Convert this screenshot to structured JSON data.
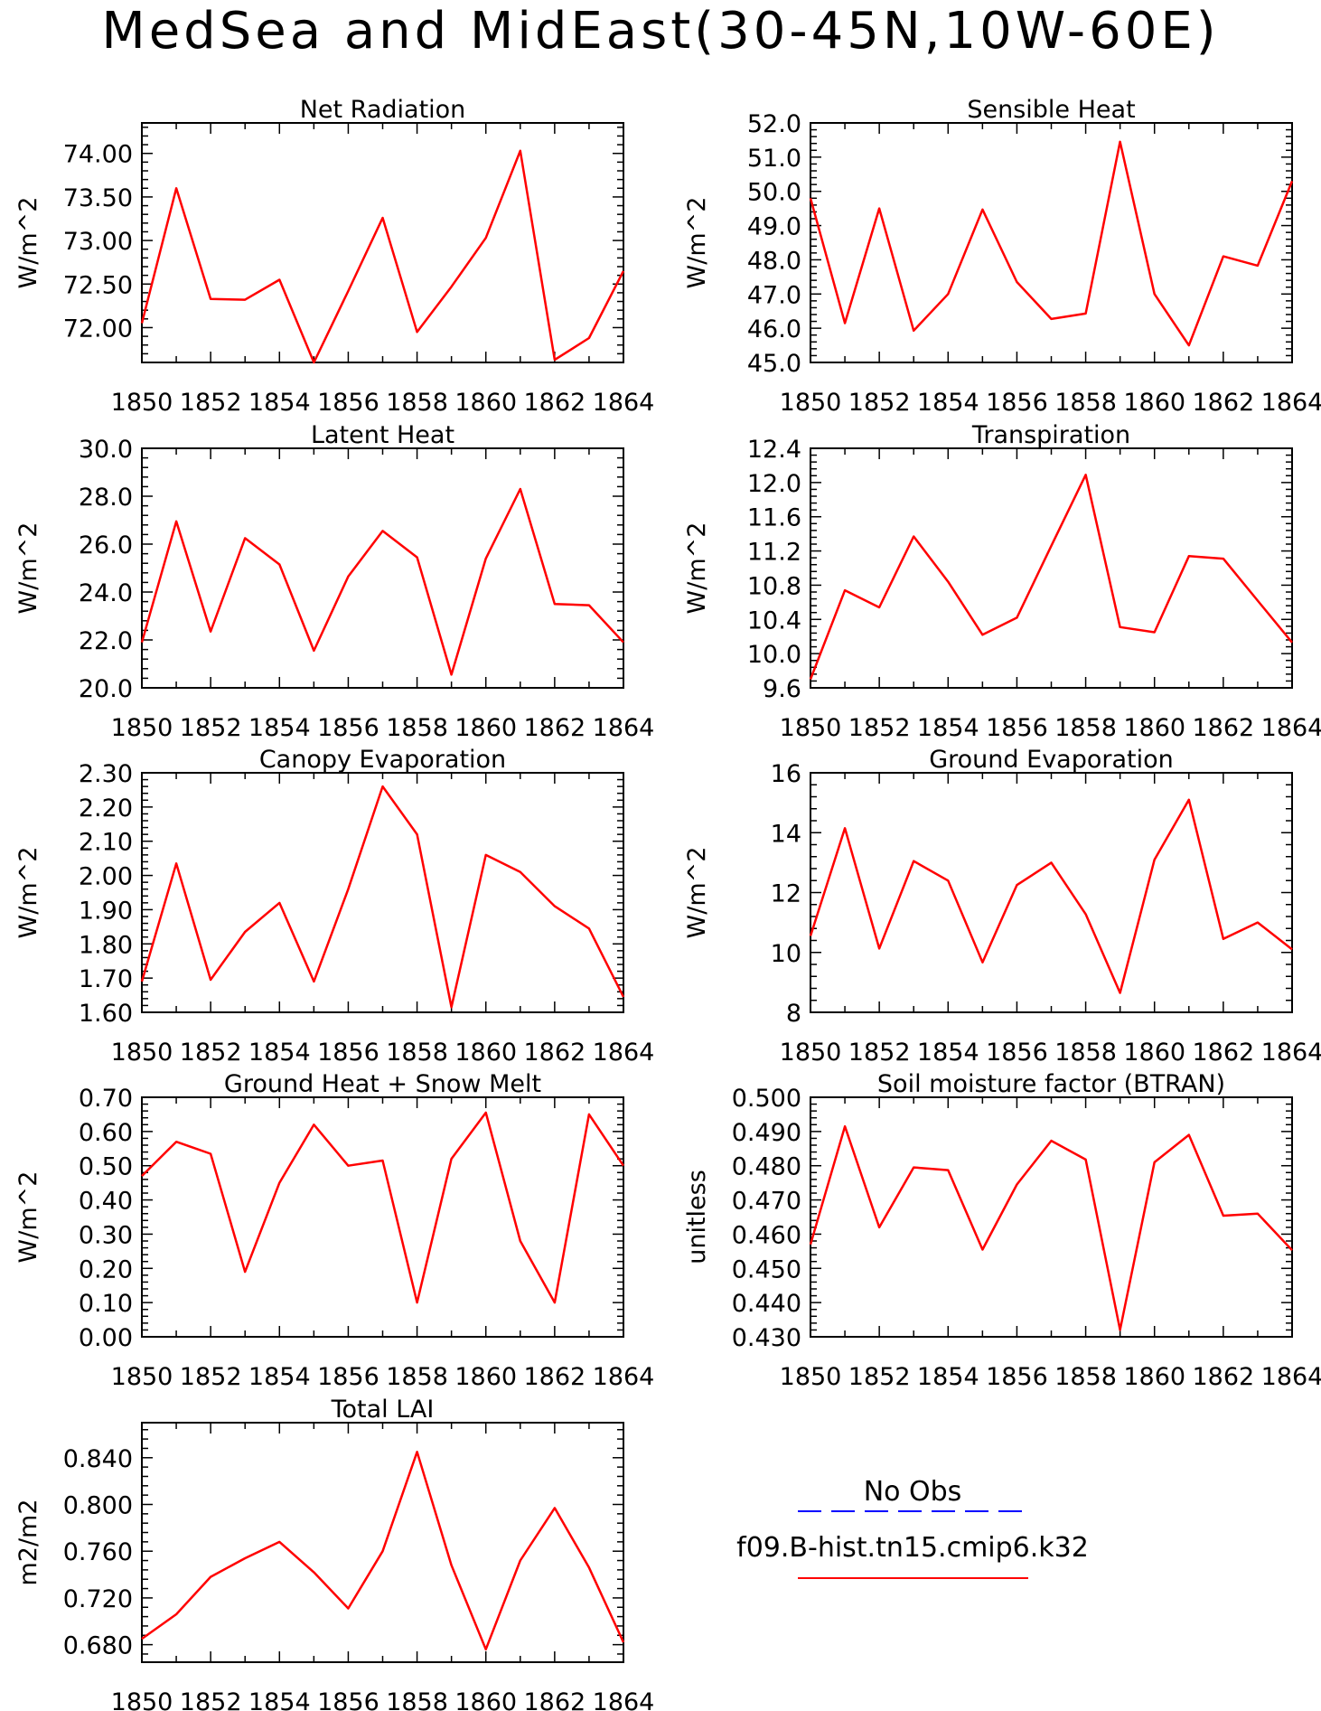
{
  "title": "MedSea and MidEast(30-45N,10W-60E)",
  "colors": {
    "model_line": "#ff0000",
    "obs_line": "#0000ff",
    "axis": "#000000"
  },
  "legend": {
    "obs_label": "No Obs",
    "model_label": "f09.B-hist.tn15.cmip6.k32"
  },
  "chart_data": [
    {
      "type": "line",
      "title": "Net Radiation",
      "ylabel": "W/m^2",
      "x": [
        1850,
        1851,
        1852,
        1853,
        1854,
        1855,
        1856,
        1857,
        1858,
        1859,
        1860,
        1861,
        1862,
        1863,
        1864
      ],
      "ylim": [
        71.6,
        74.35
      ],
      "yticks": [
        72.0,
        72.5,
        73.0,
        73.5,
        74.0
      ],
      "ytick_labels": [
        "72.00",
        "72.50",
        "73.00",
        "73.50",
        "74.00"
      ],
      "series": [
        {
          "values": [
            72.05,
            73.6,
            72.33,
            72.32,
            72.55,
            71.6,
            72.42,
            73.26,
            71.95,
            72.47,
            73.03,
            74.03,
            71.63,
            71.88,
            72.65
          ]
        }
      ]
    },
    {
      "type": "line",
      "title": "Sensible Heat",
      "ylabel": "W/m^2",
      "x": [
        1850,
        1851,
        1852,
        1853,
        1854,
        1855,
        1856,
        1857,
        1858,
        1859,
        1860,
        1861,
        1862,
        1863,
        1864
      ],
      "ylim": [
        45.0,
        52.0
      ],
      "yticks": [
        45,
        46,
        47,
        48,
        49,
        50,
        51,
        52
      ],
      "ytick_labels": [
        "45.0",
        "46.0",
        "47.0",
        "48.0",
        "49.0",
        "50.0",
        "51.0",
        "52.0"
      ],
      "series": [
        {
          "values": [
            49.8,
            46.15,
            49.5,
            45.93,
            47.0,
            49.47,
            47.35,
            46.27,
            46.43,
            51.45,
            47.0,
            45.5,
            48.1,
            47.83,
            50.3
          ]
        }
      ]
    },
    {
      "type": "line",
      "title": "Latent Heat",
      "ylabel": "W/m^2",
      "x": [
        1850,
        1851,
        1852,
        1853,
        1854,
        1855,
        1856,
        1857,
        1858,
        1859,
        1860,
        1861,
        1862,
        1863,
        1864
      ],
      "ylim": [
        20.0,
        30.0
      ],
      "yticks": [
        20,
        22,
        24,
        26,
        28,
        30
      ],
      "ytick_labels": [
        "20.0",
        "22.0",
        "24.0",
        "26.0",
        "28.0",
        "30.0"
      ],
      "series": [
        {
          "values": [
            21.9,
            26.95,
            22.35,
            26.25,
            25.15,
            21.55,
            24.65,
            26.55,
            25.45,
            20.55,
            25.4,
            28.3,
            23.5,
            23.45,
            21.9
          ]
        }
      ]
    },
    {
      "type": "line",
      "title": "Transpiration",
      "ylabel": "W/m^2",
      "x": [
        1850,
        1851,
        1852,
        1853,
        1854,
        1855,
        1856,
        1857,
        1858,
        1859,
        1860,
        1861,
        1862,
        1863,
        1864
      ],
      "ylim": [
        9.6,
        12.4
      ],
      "yticks": [
        9.6,
        10.0,
        10.4,
        10.8,
        11.2,
        11.6,
        12.0,
        12.4
      ],
      "ytick_labels": [
        "9.6",
        "10.0",
        "10.4",
        "10.8",
        "11.2",
        "11.6",
        "12.0",
        "12.4"
      ],
      "series": [
        {
          "values": [
            9.7,
            10.74,
            10.54,
            11.37,
            10.84,
            10.22,
            10.42,
            11.26,
            12.09,
            10.31,
            10.25,
            11.14,
            11.11,
            10.62,
            10.13
          ]
        }
      ]
    },
    {
      "type": "line",
      "title": "Canopy Evaporation",
      "ylabel": "W/m^2",
      "x": [
        1850,
        1851,
        1852,
        1853,
        1854,
        1855,
        1856,
        1857,
        1858,
        1859,
        1860,
        1861,
        1862,
        1863,
        1864
      ],
      "ylim": [
        1.6,
        2.3
      ],
      "yticks": [
        1.6,
        1.7,
        1.8,
        1.9,
        2.0,
        2.1,
        2.2,
        2.3
      ],
      "ytick_labels": [
        "1.60",
        "1.70",
        "1.80",
        "1.90",
        "2.00",
        "2.10",
        "2.20",
        "2.30"
      ],
      "series": [
        {
          "values": [
            1.69,
            2.035,
            1.695,
            1.835,
            1.92,
            1.69,
            1.96,
            2.26,
            2.12,
            1.615,
            2.06,
            2.01,
            1.91,
            1.845,
            1.645
          ]
        }
      ]
    },
    {
      "type": "line",
      "title": "Ground Evaporation",
      "ylabel": "W/m^2",
      "x": [
        1850,
        1851,
        1852,
        1853,
        1854,
        1855,
        1856,
        1857,
        1858,
        1859,
        1860,
        1861,
        1862,
        1863,
        1864
      ],
      "ylim": [
        8,
        16
      ],
      "yticks": [
        8,
        10,
        12,
        14,
        16
      ],
      "ytick_labels": [
        "8",
        "10",
        "12",
        "14",
        "16"
      ],
      "series": [
        {
          "values": [
            10.55,
            14.15,
            10.13,
            13.05,
            12.4,
            9.67,
            12.25,
            13.0,
            11.28,
            8.65,
            13.1,
            15.1,
            10.45,
            11.0,
            10.1
          ]
        }
      ]
    },
    {
      "type": "line",
      "title": "Ground Heat + Snow Melt",
      "ylabel": "W/m^2",
      "x": [
        1850,
        1851,
        1852,
        1853,
        1854,
        1855,
        1856,
        1857,
        1858,
        1859,
        1860,
        1861,
        1862,
        1863,
        1864
      ],
      "ylim": [
        0.0,
        0.7
      ],
      "yticks": [
        0.0,
        0.1,
        0.2,
        0.3,
        0.4,
        0.5,
        0.6,
        0.7
      ],
      "ytick_labels": [
        "0.00",
        "0.10",
        "0.20",
        "0.30",
        "0.40",
        "0.50",
        "0.60",
        "0.70"
      ],
      "series": [
        {
          "values": [
            0.47,
            0.57,
            0.535,
            0.19,
            0.45,
            0.62,
            0.5,
            0.515,
            0.1,
            0.52,
            0.655,
            0.28,
            0.1,
            0.65,
            0.5
          ]
        }
      ]
    },
    {
      "type": "line",
      "title": "Soil moisture factor (BTRAN)",
      "ylabel": "unitless",
      "x": [
        1850,
        1851,
        1852,
        1853,
        1854,
        1855,
        1856,
        1857,
        1858,
        1859,
        1860,
        1861,
        1862,
        1863,
        1864
      ],
      "ylim": [
        0.43,
        0.5
      ],
      "yticks": [
        0.43,
        0.44,
        0.45,
        0.46,
        0.47,
        0.48,
        0.49,
        0.5
      ],
      "ytick_labels": [
        "0.430",
        "0.440",
        "0.450",
        "0.460",
        "0.470",
        "0.480",
        "0.490",
        "0.500"
      ],
      "series": [
        {
          "values": [
            0.457,
            0.4915,
            0.462,
            0.4795,
            0.4787,
            0.4555,
            0.4745,
            0.4873,
            0.4818,
            0.432,
            0.481,
            0.489,
            0.4654,
            0.466,
            0.4553
          ]
        }
      ]
    },
    {
      "type": "line",
      "title": "Total LAI",
      "ylabel": "m2/m2",
      "x": [
        1850,
        1851,
        1852,
        1853,
        1854,
        1855,
        1856,
        1857,
        1858,
        1859,
        1860,
        1861,
        1862,
        1863,
        1864
      ],
      "ylim": [
        0.665,
        0.87
      ],
      "yticks": [
        0.68,
        0.72,
        0.76,
        0.8,
        0.84
      ],
      "ytick_labels": [
        "0.680",
        "0.720",
        "0.760",
        "0.800",
        "0.840"
      ],
      "series": [
        {
          "values": [
            0.685,
            0.706,
            0.738,
            0.754,
            0.768,
            0.742,
            0.711,
            0.76,
            0.845,
            0.748,
            0.676,
            0.752,
            0.797,
            0.746,
            0.682
          ]
        }
      ]
    }
  ]
}
